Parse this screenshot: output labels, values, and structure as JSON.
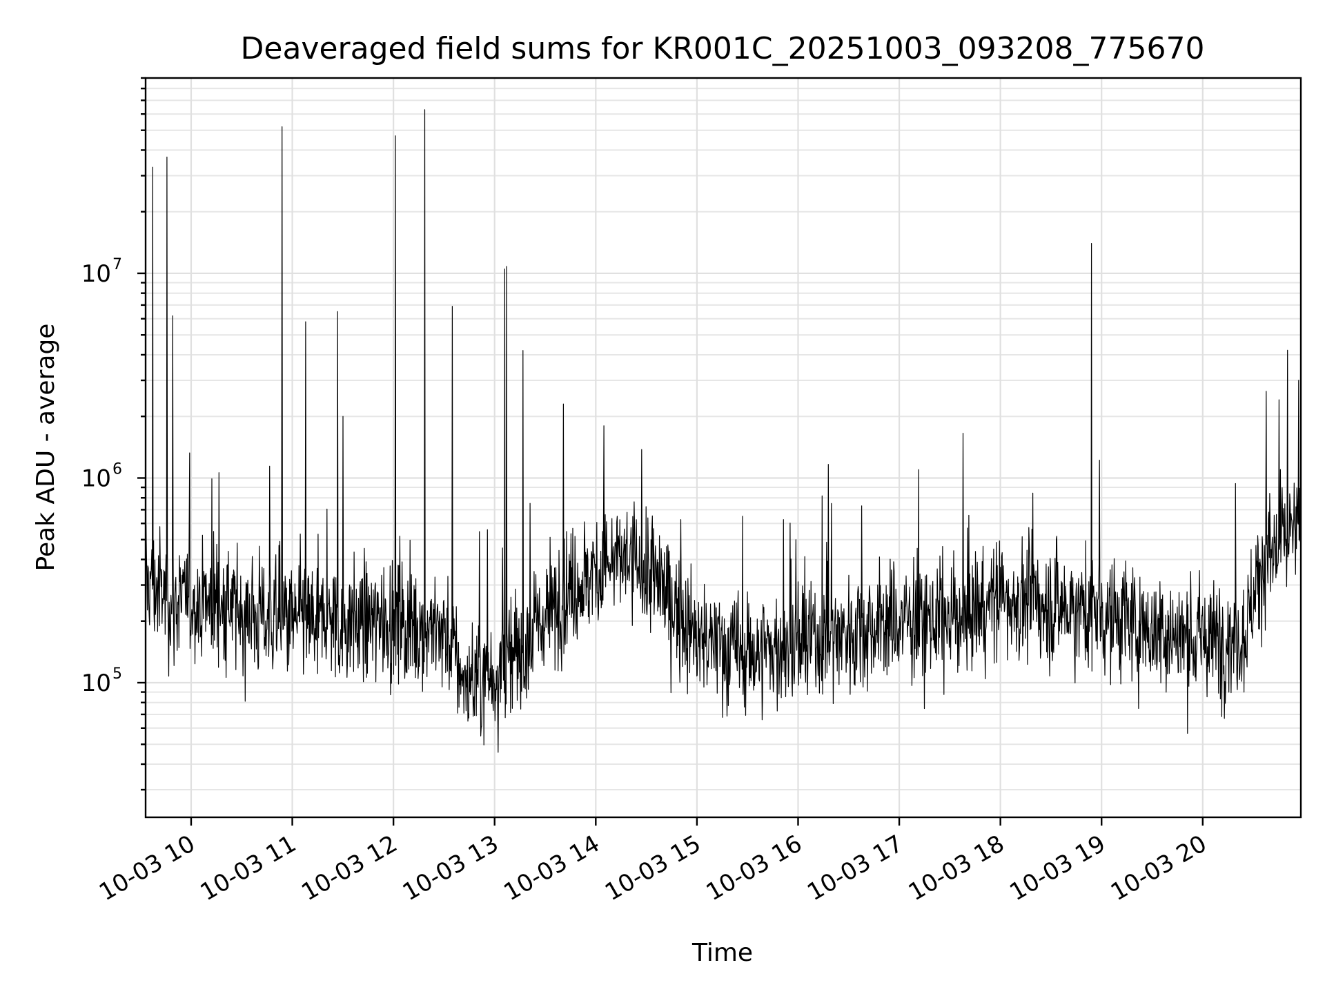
{
  "chart_data": {
    "type": "line",
    "title": "Deaveraged field sums for KR001C_20251003_093208_775670",
    "xlabel": "Time",
    "ylabel": "Peak ADU - average",
    "yscale": "log",
    "ylim": [
      22000,
      90000000
    ],
    "xlim_hours": [
      9.55,
      20.97
    ],
    "grid": true,
    "x_tick_labels": [
      {
        "hour": 10,
        "label": "10-03 10"
      },
      {
        "hour": 11,
        "label": "10-03 11"
      },
      {
        "hour": 12,
        "label": "10-03 12"
      },
      {
        "hour": 13,
        "label": "10-03 13"
      },
      {
        "hour": 14,
        "label": "10-03 14"
      },
      {
        "hour": 15,
        "label": "10-03 15"
      },
      {
        "hour": 16,
        "label": "10-03 16"
      },
      {
        "hour": 17,
        "label": "10-03 17"
      },
      {
        "hour": 18,
        "label": "10-03 18"
      },
      {
        "hour": 19,
        "label": "10-03 19"
      },
      {
        "hour": 20,
        "label": "10-03 20"
      }
    ],
    "y_tick_labels": [
      {
        "value": 100000,
        "base": "10",
        "exp": "5"
      },
      {
        "value": 1000000,
        "base": "10",
        "exp": "6"
      },
      {
        "value": 10000000,
        "base": "10",
        "exp": "7"
      }
    ],
    "series": [
      {
        "name": "Peak ADU - average",
        "baseline_hours": [
          9.55,
          9.8,
          10.2,
          10.5,
          11.0,
          11.5,
          12.0,
          12.5,
          12.7,
          13.0,
          13.3,
          13.6,
          14.0,
          14.3,
          14.6,
          15.0,
          15.5,
          16.0,
          16.5,
          17.0,
          17.5,
          18.0,
          18.5,
          19.0,
          19.5,
          20.0,
          20.4,
          20.6,
          20.97
        ],
        "baseline_values": [
          320000,
          250000,
          250000,
          220000,
          200000,
          200000,
          200000,
          180000,
          100000,
          110000,
          150000,
          250000,
          350000,
          400000,
          320000,
          160000,
          140000,
          150000,
          180000,
          200000,
          200000,
          260000,
          240000,
          220000,
          180000,
          160000,
          170000,
          400000,
          560000
        ],
        "spikes": [
          {
            "hour": 9.62,
            "value": 33000000
          },
          {
            "hour": 9.76,
            "value": 37000000
          },
          {
            "hour": 9.82,
            "value": 6200000
          },
          {
            "hour": 10.9,
            "value": 52000000
          },
          {
            "hour": 11.13,
            "value": 5800000
          },
          {
            "hour": 11.45,
            "value": 6500000
          },
          {
            "hour": 11.5,
            "value": 2000000
          },
          {
            "hour": 12.02,
            "value": 47000000
          },
          {
            "hour": 12.31,
            "value": 63000000
          },
          {
            "hour": 12.58,
            "value": 6900000
          },
          {
            "hour": 13.1,
            "value": 10500000
          },
          {
            "hour": 13.12,
            "value": 10800000
          },
          {
            "hour": 13.28,
            "value": 4200000
          },
          {
            "hour": 13.68,
            "value": 2300000
          },
          {
            "hour": 14.08,
            "value": 1800000
          },
          {
            "hour": 18.9,
            "value": 14000000
          },
          {
            "hour": 20.95,
            "value": 3000000
          }
        ],
        "color": "#000000"
      }
    ]
  }
}
